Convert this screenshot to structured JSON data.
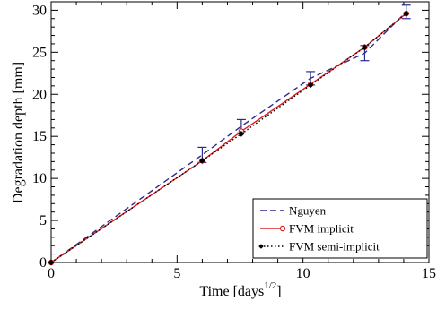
{
  "chart_data": {
    "type": "line",
    "xlabel": "Time [days",
    "xlabel_sup": "1/2",
    "xlabel_end": "]",
    "ylabel": "Degradation depth [mm]",
    "xlim": [
      0,
      15
    ],
    "ylim": [
      0,
      31
    ],
    "xticks": [
      0,
      5,
      10,
      15
    ],
    "yticks": [
      0,
      5,
      10,
      15,
      20,
      25,
      30
    ],
    "grid": false,
    "legend_position": "bottom-right",
    "series": [
      {
        "name": "Nguyen",
        "style": "dashed",
        "color": "#2b2b8c",
        "x": [
          0,
          6.0,
          7.55,
          10.3,
          12.45,
          14.1
        ],
        "y": [
          0,
          12.8,
          16.2,
          21.9,
          24.9,
          29.8
        ],
        "err": [
          0,
          0.9,
          0.8,
          0.8,
          0.9,
          0.8
        ]
      },
      {
        "name": "FVM implicit",
        "style": "solid",
        "color": "#e02020",
        "marker": "circle",
        "x": [
          0,
          6.0,
          7.55,
          10.3,
          12.45,
          14.1
        ],
        "y": [
          0,
          12.1,
          15.6,
          21.2,
          25.6,
          29.6
        ]
      },
      {
        "name": "FVM semi-implicit",
        "style": "dotted",
        "color": "#000000",
        "marker": "diamond",
        "x": [
          0,
          6.0,
          7.55,
          10.3,
          12.45,
          14.1
        ],
        "y": [
          0,
          12.1,
          15.3,
          21.1,
          25.6,
          29.6
        ]
      }
    ]
  }
}
